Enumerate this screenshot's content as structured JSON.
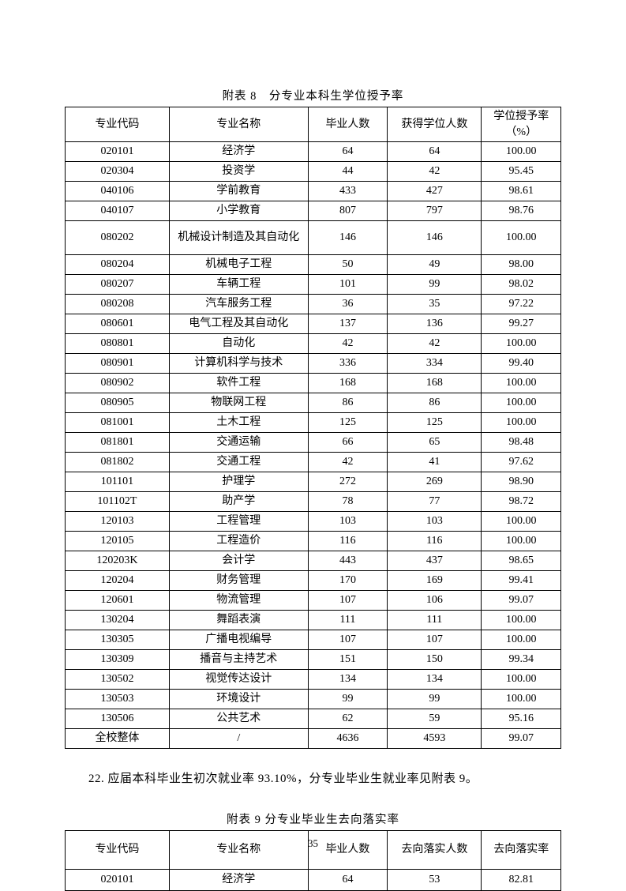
{
  "table1": {
    "caption": "附表 8　分专业本科生学位授予率",
    "columns": [
      "专业代码",
      "专业名称",
      "毕业人数",
      "获得学位人数",
      "学位授予率（%）"
    ],
    "rows": [
      [
        "020101",
        "经济学",
        "64",
        "64",
        "100.00"
      ],
      [
        "020304",
        "投资学",
        "44",
        "42",
        "95.45"
      ],
      [
        "040106",
        "学前教育",
        "433",
        "427",
        "98.61"
      ],
      [
        "040107",
        "小学教育",
        "807",
        "797",
        "98.76"
      ],
      [
        "080202",
        "机械设计制造及其自动化",
        "146",
        "146",
        "100.00"
      ],
      [
        "080204",
        "机械电子工程",
        "50",
        "49",
        "98.00"
      ],
      [
        "080207",
        "车辆工程",
        "101",
        "99",
        "98.02"
      ],
      [
        "080208",
        "汽车服务工程",
        "36",
        "35",
        "97.22"
      ],
      [
        "080601",
        "电气工程及其自动化",
        "137",
        "136",
        "99.27"
      ],
      [
        "080801",
        "自动化",
        "42",
        "42",
        "100.00"
      ],
      [
        "080901",
        "计算机科学与技术",
        "336",
        "334",
        "99.40"
      ],
      [
        "080902",
        "软件工程",
        "168",
        "168",
        "100.00"
      ],
      [
        "080905",
        "物联网工程",
        "86",
        "86",
        "100.00"
      ],
      [
        "081001",
        "土木工程",
        "125",
        "125",
        "100.00"
      ],
      [
        "081801",
        "交通运输",
        "66",
        "65",
        "98.48"
      ],
      [
        "081802",
        "交通工程",
        "42",
        "41",
        "97.62"
      ],
      [
        "101101",
        "护理学",
        "272",
        "269",
        "98.90"
      ],
      [
        "101102T",
        "助产学",
        "78",
        "77",
        "98.72"
      ],
      [
        "120103",
        "工程管理",
        "103",
        "103",
        "100.00"
      ],
      [
        "120105",
        "工程造价",
        "116",
        "116",
        "100.00"
      ],
      [
        "120203K",
        "会计学",
        "443",
        "437",
        "98.65"
      ],
      [
        "120204",
        "财务管理",
        "170",
        "169",
        "99.41"
      ],
      [
        "120601",
        "物流管理",
        "107",
        "106",
        "99.07"
      ],
      [
        "130204",
        "舞蹈表演",
        "111",
        "111",
        "100.00"
      ],
      [
        "130305",
        "广播电视编导",
        "107",
        "107",
        "100.00"
      ],
      [
        "130309",
        "播音与主持艺术",
        "151",
        "150",
        "99.34"
      ],
      [
        "130502",
        "视觉传达设计",
        "134",
        "134",
        "100.00"
      ],
      [
        "130503",
        "环境设计",
        "99",
        "99",
        "100.00"
      ],
      [
        "130506",
        "公共艺术",
        "62",
        "59",
        "95.16"
      ],
      [
        "全校整体",
        "/",
        "4636",
        "4593",
        "99.07"
      ]
    ],
    "tall_rows": [
      4
    ]
  },
  "paragraph": "22. 应届本科毕业生初次就业率 93.10%，分专业毕业生就业率见附表 9。",
  "table2": {
    "caption": "附表 9 分专业毕业生去向落实率",
    "columns": [
      "专业代码",
      "专业名称",
      "毕业人数",
      "去向落实人数",
      "去向落实率"
    ],
    "rows": [
      [
        "020101",
        "经济学",
        "64",
        "53",
        "82.81"
      ]
    ]
  },
  "page_number": "35"
}
